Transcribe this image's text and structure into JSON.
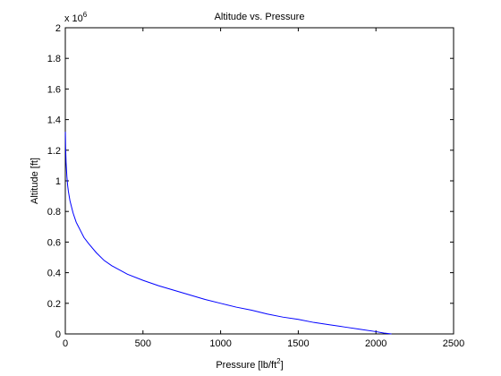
{
  "chart_data": {
    "type": "line",
    "title": "Altitude vs. Pressure",
    "xlabel_main": "Pressure [lb/ft",
    "xlabel_sup": "2",
    "xlabel_end": "]",
    "ylabel": "Altitude [ft]",
    "y_exponent_base": "x 10",
    "y_exponent_power": "6",
    "xlim": [
      0,
      2500
    ],
    "ylim": [
      0,
      2
    ],
    "x_ticks": [
      0,
      500,
      1000,
      1500,
      2000,
      2500
    ],
    "x_tick_labels": [
      "0",
      "500",
      "1000",
      "1500",
      "2000",
      "2500"
    ],
    "y_ticks": [
      0,
      0.2,
      0.4,
      0.6,
      0.8,
      1,
      1.2,
      1.4,
      1.6,
      1.8,
      2
    ],
    "y_tick_labels": [
      "0",
      "0.2",
      "0.4",
      "0.6",
      "0.8",
      "1",
      "1.2",
      "1.4",
      "1.6",
      "1.8",
      "2"
    ],
    "grid": false,
    "line_color": "#0000ff",
    "series": [
      {
        "x": [
          0.5,
          2,
          5,
          10,
          15,
          20,
          30,
          40,
          50,
          60,
          70,
          80,
          100,
          120,
          150,
          200,
          250,
          300,
          400,
          500,
          600,
          700,
          800,
          900,
          1000,
          1100,
          1200,
          1300,
          1400,
          1500,
          1600,
          1700,
          1800,
          1900,
          2000,
          2050,
          2100
        ],
        "y": [
          1.32,
          1.22,
          1.12,
          1.03,
          0.97,
          0.93,
          0.87,
          0.83,
          0.79,
          0.76,
          0.73,
          0.71,
          0.67,
          0.63,
          0.59,
          0.53,
          0.48,
          0.445,
          0.39,
          0.35,
          0.315,
          0.285,
          0.255,
          0.225,
          0.2,
          0.175,
          0.155,
          0.13,
          0.11,
          0.095,
          0.075,
          0.06,
          0.045,
          0.03,
          0.015,
          0.006,
          0.0
        ]
      }
    ]
  }
}
